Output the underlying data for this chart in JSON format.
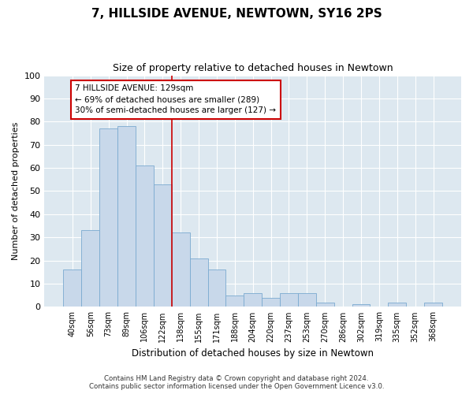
{
  "title": "7, HILLSIDE AVENUE, NEWTOWN, SY16 2PS",
  "subtitle": "Size of property relative to detached houses in Newtown",
  "xlabel": "Distribution of detached houses by size in Newtown",
  "ylabel": "Number of detached properties",
  "bin_labels": [
    "40sqm",
    "56sqm",
    "73sqm",
    "89sqm",
    "106sqm",
    "122sqm",
    "138sqm",
    "155sqm",
    "171sqm",
    "188sqm",
    "204sqm",
    "220sqm",
    "237sqm",
    "253sqm",
    "270sqm",
    "286sqm",
    "302sqm",
    "319sqm",
    "335sqm",
    "352sqm",
    "368sqm"
  ],
  "bar_heights": [
    16,
    33,
    77,
    78,
    61,
    53,
    32,
    21,
    16,
    5,
    6,
    4,
    6,
    6,
    2,
    0,
    1,
    0,
    2,
    0,
    2
  ],
  "bar_color": "#c8d8ea",
  "bar_edge_color": "#7aaad0",
  "vline_x_index": 5.5,
  "vline_color": "#cc0000",
  "annotation_text": "7 HILLSIDE AVENUE: 129sqm\n← 69% of detached houses are smaller (289)\n30% of semi-detached houses are larger (127) →",
  "annotation_box_facecolor": "#ffffff",
  "annotation_box_edgecolor": "#cc0000",
  "ylim": [
    0,
    100
  ],
  "yticks": [
    0,
    10,
    20,
    30,
    40,
    50,
    60,
    70,
    80,
    90,
    100
  ],
  "figure_facecolor": "#ffffff",
  "axes_facecolor": "#dde8f0",
  "grid_color": "#ffffff",
  "footer_text": "Contains HM Land Registry data © Crown copyright and database right 2024.\nContains public sector information licensed under the Open Government Licence v3.0."
}
